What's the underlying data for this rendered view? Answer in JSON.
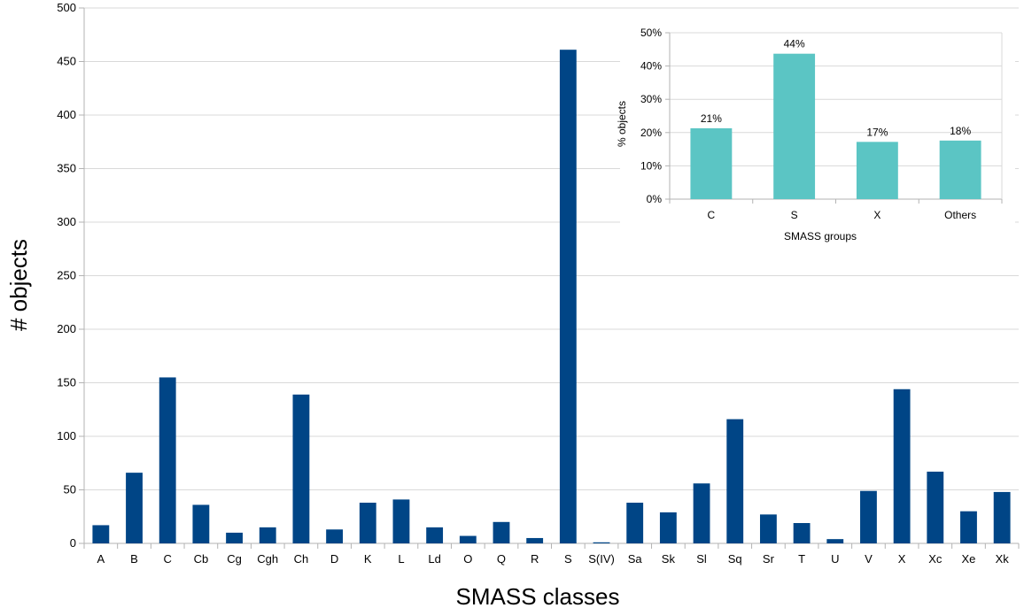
{
  "chart_data": [
    {
      "type": "bar",
      "title": "",
      "xlabel": "SMASS classes",
      "ylabel": "# objects",
      "ylim": [
        0,
        500
      ],
      "yticks": [
        0,
        50,
        100,
        150,
        200,
        250,
        300,
        350,
        400,
        450,
        500
      ],
      "grid": "horizontal",
      "bar_color": "#004586",
      "categories": [
        "A",
        "B",
        "C",
        "Cb",
        "Cg",
        "Cgh",
        "Ch",
        "D",
        "K",
        "L",
        "Ld",
        "O",
        "Q",
        "R",
        "S",
        "S(IV)",
        "Sa",
        "Sk",
        "Sl",
        "Sq",
        "Sr",
        "T",
        "U",
        "V",
        "X",
        "Xc",
        "Xe",
        "Xk"
      ],
      "values": [
        17,
        66,
        155,
        36,
        10,
        15,
        139,
        13,
        38,
        41,
        15,
        7,
        20,
        5,
        461,
        1,
        38,
        29,
        56,
        116,
        27,
        19,
        4,
        49,
        144,
        67,
        30,
        48
      ]
    },
    {
      "type": "bar",
      "title": "",
      "xlabel": "SMASS groups",
      "ylabel": "% objects",
      "ylim": [
        0,
        50
      ],
      "yticks": [
        "0%",
        "10%",
        "20%",
        "30%",
        "40%",
        "50%"
      ],
      "grid": "horizontal",
      "bar_color": "#5bc5c4",
      "categories": [
        "C",
        "S",
        "X",
        "Others"
      ],
      "values": [
        21.3,
        43.7,
        17.2,
        17.6
      ],
      "data_labels": [
        "21%",
        "44%",
        "17%",
        "18%"
      ]
    }
  ]
}
